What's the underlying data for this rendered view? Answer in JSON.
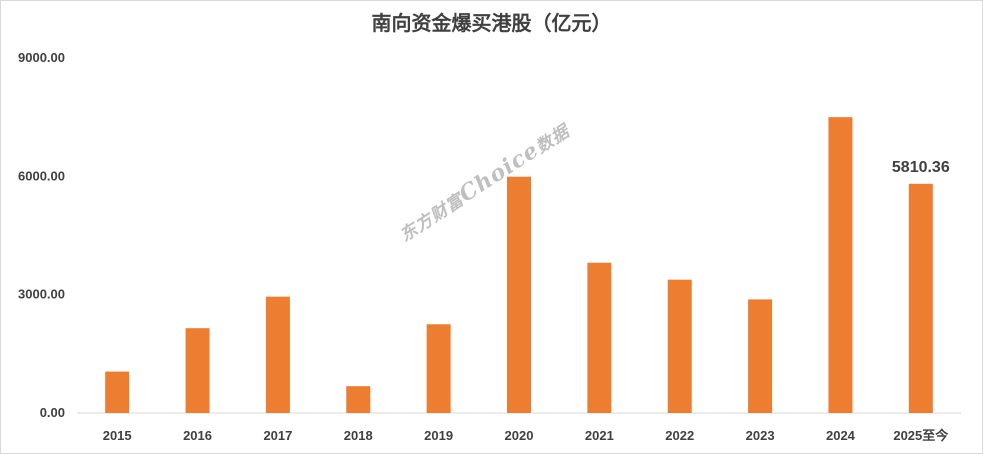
{
  "watermark": {
    "prefix": "东方财富",
    "brand": "Choice",
    "suffix": "数据"
  },
  "chart_data": {
    "type": "bar",
    "title": "南向资金爆买港股（亿元）",
    "xlabel": "",
    "ylabel": "",
    "categories": [
      "2015",
      "2016",
      "2017",
      "2018",
      "2019",
      "2020",
      "2021",
      "2022",
      "2023",
      "2024",
      "2025至今"
    ],
    "values": [
      1050,
      2150,
      2950,
      680,
      2250,
      5990,
      3810,
      3380,
      2880,
      7500,
      5810.36
    ],
    "data_labels": [
      null,
      null,
      null,
      null,
      null,
      null,
      null,
      null,
      null,
      null,
      "5810.36"
    ],
    "ylim": [
      0,
      9000
    ],
    "yticks": [
      "0.00",
      "3000.00",
      "6000.00",
      "9000.00"
    ],
    "ytick_values": [
      0,
      3000,
      6000,
      9000
    ],
    "bar_color": "#ED7D31",
    "grid": false,
    "legend": "none"
  }
}
